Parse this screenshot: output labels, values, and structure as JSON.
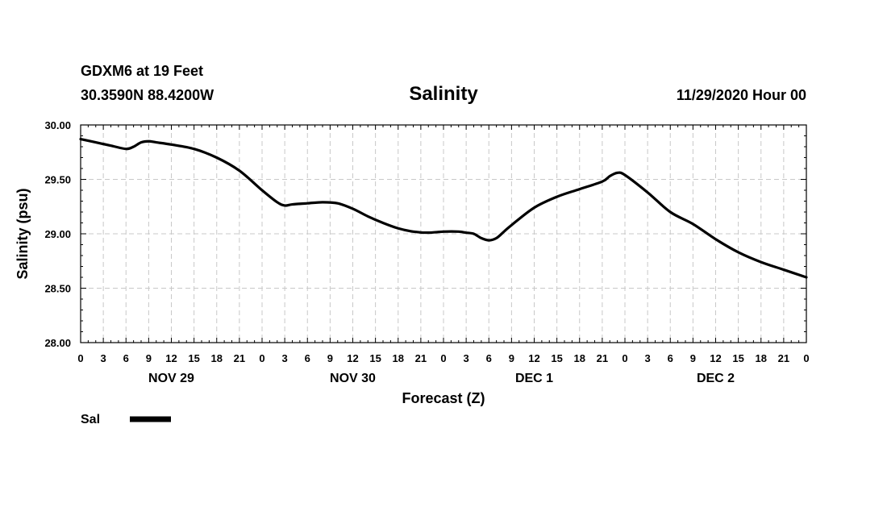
{
  "header": {
    "station": "GDXM6 at 19 Feet",
    "coords": "30.3590N 88.4200W",
    "datetime": "11/29/2020 Hour 00"
  },
  "chart_data": {
    "type": "line",
    "title": "Salinity",
    "xlabel": "Forecast (Z)",
    "ylabel": "Salinity (psu)",
    "ylim": [
      28.0,
      30.0
    ],
    "xlim": [
      0,
      96
    ],
    "x_unit": "hours from 11/29/2020 00Z",
    "grid": true,
    "x_tick_labels": [
      "0",
      "3",
      "6",
      "9",
      "12",
      "15",
      "18",
      "21",
      "0",
      "3",
      "6",
      "9",
      "12",
      "15",
      "18",
      "21",
      "0",
      "3",
      "6",
      "9",
      "12",
      "15",
      "18",
      "21",
      "0",
      "3",
      "6",
      "9",
      "12",
      "15",
      "18",
      "21",
      "0"
    ],
    "y_ticks": [
      28.0,
      28.5,
      29.0,
      29.5,
      30.0
    ],
    "y_tick_labels": [
      "28.00",
      "28.50",
      "29.00",
      "29.50",
      "30.00"
    ],
    "day_labels": [
      "NOV 29",
      "NOV 30",
      "DEC 1",
      "DEC 2"
    ],
    "legend_position": "bottom-left",
    "series": [
      {
        "name": "Sal",
        "color": "#000000",
        "x": [
          0,
          2,
          4,
          6,
          7,
          8,
          9,
          10,
          12,
          15,
          18,
          21,
          24,
          26,
          27,
          28,
          30,
          32,
          34,
          36,
          38,
          40,
          42,
          44,
          46,
          48,
          50,
          51,
          52,
          53,
          54,
          55,
          56,
          57,
          60,
          63,
          66,
          69,
          70,
          71,
          72,
          75,
          78,
          81,
          84,
          87,
          90,
          93,
          96
        ],
        "y": [
          29.87,
          29.84,
          29.81,
          29.78,
          29.8,
          29.84,
          29.85,
          29.84,
          29.82,
          29.78,
          29.7,
          29.58,
          29.4,
          29.29,
          29.26,
          29.27,
          29.28,
          29.29,
          29.28,
          29.23,
          29.16,
          29.1,
          29.05,
          29.02,
          29.01,
          29.02,
          29.02,
          29.01,
          29.0,
          28.96,
          28.94,
          28.96,
          29.02,
          29.08,
          29.24,
          29.34,
          29.41,
          29.48,
          29.53,
          29.56,
          29.54,
          29.38,
          29.2,
          29.09,
          28.95,
          28.83,
          28.74,
          28.67,
          28.6
        ]
      }
    ]
  }
}
